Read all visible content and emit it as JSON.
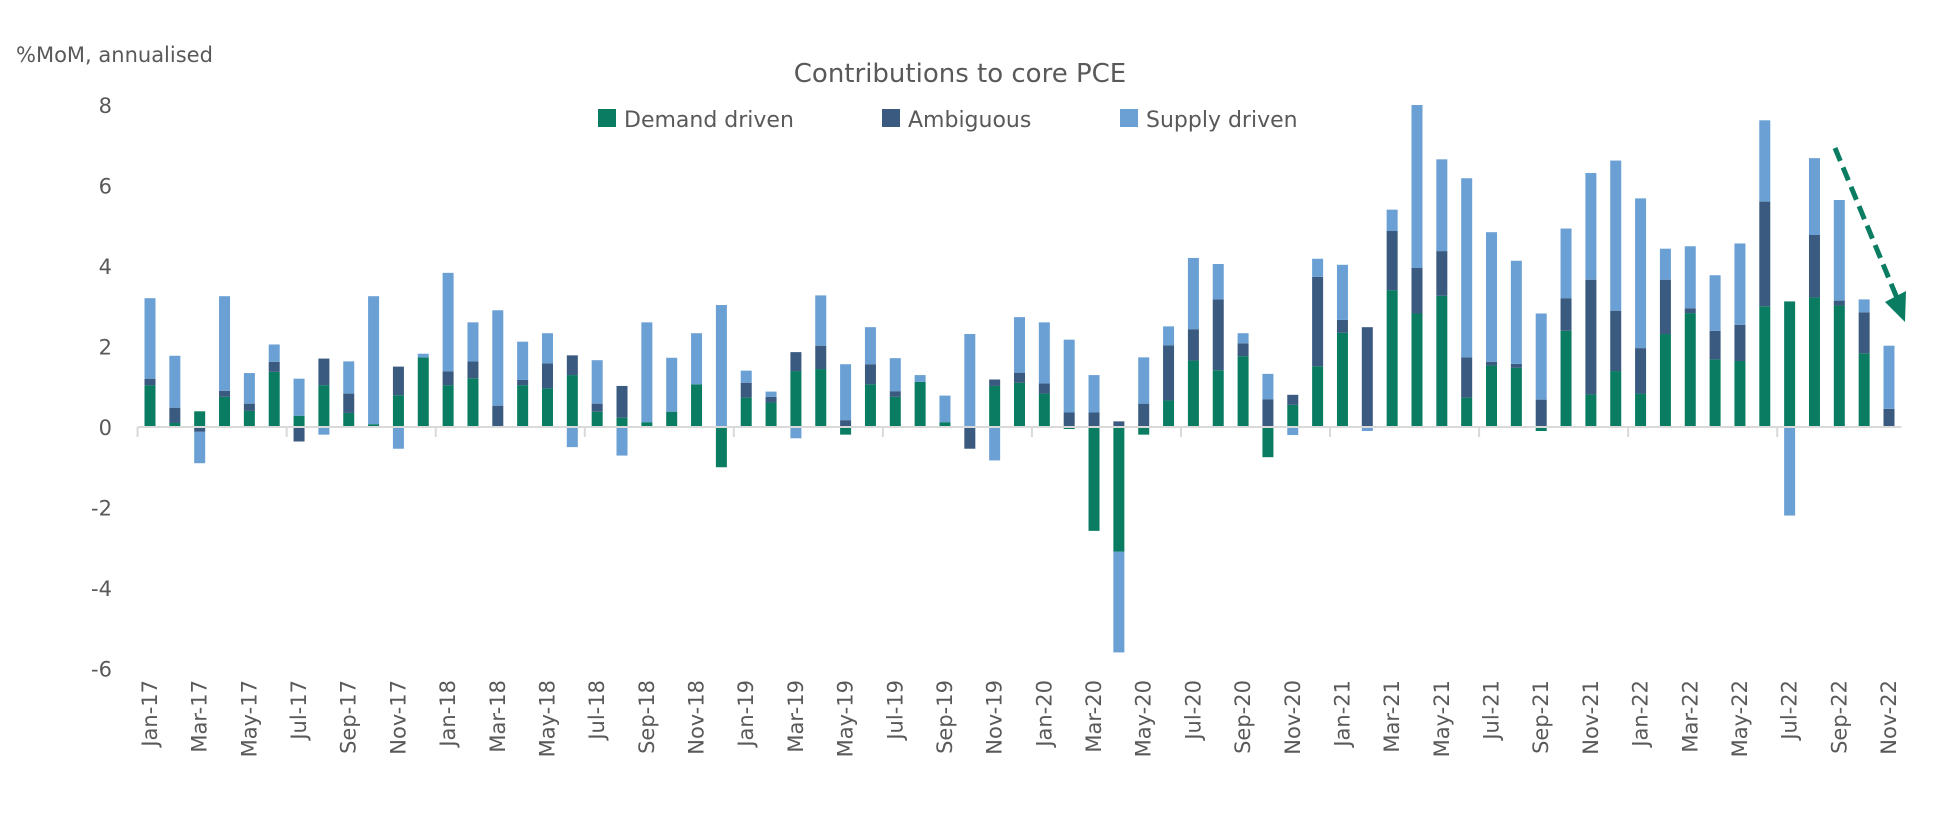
{
  "chart_data": {
    "type": "bar",
    "stacked": true,
    "title": "Contributions to core PCE",
    "ylabel": "%MoM, annualised",
    "xlabel": "",
    "ylim": [
      -6,
      8
    ],
    "yticks": [
      -6,
      -4,
      -2,
      0,
      2,
      4,
      6,
      8
    ],
    "grid": false,
    "legend_position": "top-center",
    "categories": [
      "Jan-17",
      "Feb-17",
      "Mar-17",
      "Apr-17",
      "May-17",
      "Jun-17",
      "Jul-17",
      "Aug-17",
      "Sep-17",
      "Oct-17",
      "Nov-17",
      "Dec-17",
      "Jan-18",
      "Feb-18",
      "Mar-18",
      "Apr-18",
      "May-18",
      "Jun-18",
      "Jul-18",
      "Aug-18",
      "Sep-18",
      "Oct-18",
      "Nov-18",
      "Dec-18",
      "Jan-19",
      "Feb-19",
      "Mar-19",
      "Apr-19",
      "May-19",
      "Jun-19",
      "Jul-19",
      "Aug-19",
      "Sep-19",
      "Oct-19",
      "Nov-19",
      "Dec-19",
      "Jan-20",
      "Feb-20",
      "Mar-20",
      "Apr-20",
      "May-20",
      "Jun-20",
      "Jul-20",
      "Aug-20",
      "Sep-20",
      "Oct-20",
      "Nov-20",
      "Dec-20",
      "Jan-21",
      "Feb-21",
      "Mar-21",
      "Apr-21",
      "May-21",
      "Jun-21",
      "Jul-21",
      "Aug-21",
      "Sep-21",
      "Oct-21",
      "Nov-21",
      "Dec-21",
      "Jan-22",
      "Feb-22",
      "Mar-22",
      "Apr-22",
      "May-22",
      "Jun-22",
      "Jul-22",
      "Aug-22",
      "Sep-22",
      "Oct-22",
      "Nov-22"
    ],
    "tick_labels": [
      "Jan-17",
      "Mar-17",
      "May-17",
      "Jul-17",
      "Sep-17",
      "Nov-17",
      "Jan-18",
      "Mar-18",
      "May-18",
      "Jul-18",
      "Sep-18",
      "Nov-18",
      "Jan-19",
      "Mar-19",
      "May-19",
      "Jul-19",
      "Sep-19",
      "Nov-19",
      "Jan-20",
      "Mar-20",
      "May-20",
      "Jul-20",
      "Sep-20",
      "Nov-20",
      "Jan-21",
      "Mar-21",
      "May-21",
      "Jul-21",
      "Sep-21",
      "Nov-21",
      "Jan-22",
      "Mar-22",
      "May-22",
      "Jul-22",
      "Sep-22",
      "Nov-22"
    ],
    "series": [
      {
        "name": "Demand driven",
        "color": "#0a7c61",
        "values": [
          1.04,
          0.1,
          0.39,
          0.75,
          0.4,
          1.37,
          0.28,
          1.04,
          0.35,
          0.07,
          0.79,
          1.73,
          1.04,
          1.21,
          0,
          1.04,
          0.96,
          1.29,
          0.38,
          0.23,
          0.12,
          0.38,
          1.06,
          -1.0,
          0.73,
          0.61,
          1.39,
          1.44,
          -0.19,
          1.06,
          0.75,
          1.12,
          0.12,
          0,
          1.02,
          1.1,
          0.83,
          -0.05,
          -2.58,
          -3.1,
          -0.19,
          0.66,
          1.65,
          1.41,
          1.76,
          -0.75,
          0.55,
          1.51,
          2.34,
          0,
          3.4,
          2.82,
          3.26,
          0.73,
          1.53,
          1.47,
          -0.1,
          2.39,
          0.81,
          1.39,
          0.83,
          2.31,
          2.83,
          1.68,
          1.64,
          3.0,
          3.12,
          3.22,
          3.02,
          1.83,
          0
        ]
      },
      {
        "name": "Ambiguous",
        "color": "#3a5a80",
        "values": [
          0.16,
          0.38,
          -0.12,
          0.15,
          0.18,
          0.25,
          -0.36,
          0.66,
          0.48,
          0,
          0.71,
          0,
          0.34,
          0.42,
          0.53,
          0.13,
          0.62,
          0.49,
          0.2,
          0.79,
          0,
          0,
          0,
          0,
          0.37,
          0.14,
          0.47,
          0.58,
          0.17,
          0.5,
          0.14,
          0,
          0,
          -0.54,
          0.16,
          0.25,
          0.25,
          0.36,
          0.36,
          0.14,
          0.58,
          1.37,
          0.78,
          1.76,
          0.32,
          0.69,
          0.25,
          2.22,
          0.32,
          2.48,
          1.47,
          1.13,
          1.11,
          1.0,
          0.09,
          0.1,
          0.68,
          0.81,
          2.85,
          1.5,
          1.13,
          1.35,
          0.12,
          0.71,
          0.9,
          2.6,
          0,
          1.55,
          0.12,
          1.02,
          0.45
        ]
      },
      {
        "name": "Supply driven",
        "color": "#6aa0d4",
        "values": [
          2.0,
          1.29,
          -0.78,
          2.35,
          0.76,
          0.43,
          0.92,
          -0.19,
          0.8,
          3.18,
          -0.54,
          0.09,
          2.45,
          0.97,
          2.37,
          0.95,
          0.75,
          -0.5,
          1.08,
          -0.71,
          2.48,
          1.34,
          1.27,
          3.03,
          0.3,
          0.13,
          -0.28,
          1.25,
          1.39,
          0.92,
          0.82,
          0.17,
          0.66,
          2.31,
          -0.83,
          1.38,
          1.52,
          1.81,
          0.93,
          -2.5,
          1.15,
          0.47,
          1.77,
          0.88,
          0.25,
          0.63,
          -0.2,
          0.45,
          1.37,
          -0.1,
          0.53,
          4.05,
          2.28,
          4.45,
          3.22,
          2.56,
          2.14,
          1.73,
          2.65,
          3.73,
          3.72,
          0.77,
          1.54,
          1.38,
          2.02,
          2.02,
          -2.2,
          1.91,
          2.5,
          0.32,
          1.57
        ]
      }
    ],
    "annotation": {
      "type": "dashed-arrow",
      "color": "#0a7c61",
      "from_category": "Aug-22",
      "to_category": "Nov-22",
      "meaning": "downward trend"
    }
  }
}
